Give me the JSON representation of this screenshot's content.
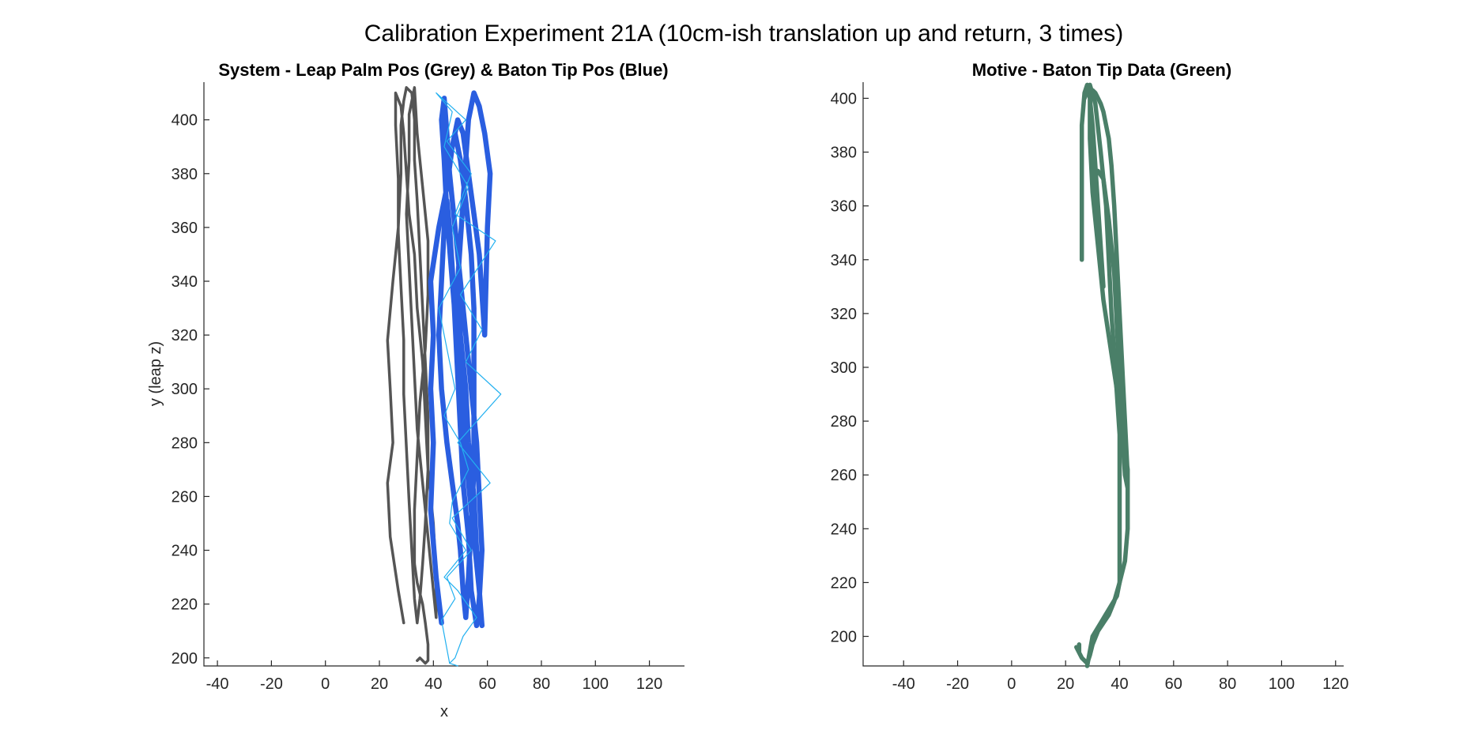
{
  "figure_title": "Calibration Experiment 21A (10cm-ish translation up and return, 3 times)",
  "colors": {
    "grey": "#555555",
    "blue": "#2a5ee0",
    "cyan": "#22b0f0",
    "green": "#4a7f68",
    "axis": "#262626"
  },
  "chart_data": [
    {
      "type": "line",
      "title": "System - Leap Palm Pos (Grey) & Baton Tip Pos (Blue)",
      "xlabel": "x",
      "ylabel": "y (leap z)",
      "xlim": [
        -45,
        133
      ],
      "ylim": [
        197,
        414
      ],
      "xticks": [
        -40,
        -20,
        0,
        20,
        40,
        60,
        80,
        100,
        120
      ],
      "yticks": [
        200,
        220,
        240,
        260,
        280,
        300,
        320,
        340,
        360,
        380,
        400
      ],
      "grid": false,
      "series": [
        {
          "color": "#555555",
          "width": 3.5,
          "x": [
            29,
            27,
            24,
            23,
            25,
            24,
            23,
            25,
            27,
            28,
            28,
            29,
            30,
            32,
            33,
            33,
            34,
            35,
            36,
            37,
            38,
            38,
            37,
            36,
            35,
            34,
            33,
            32,
            31,
            30,
            29,
            29,
            28,
            27,
            27,
            26,
            26,
            28,
            29,
            30,
            31,
            33,
            34,
            36,
            37,
            38,
            40,
            41,
            41,
            40,
            38,
            36,
            34,
            33,
            32,
            31,
            30,
            31,
            31,
            33,
            34,
            36,
            38,
            38,
            37,
            35,
            34,
            33,
            33
          ],
          "y": [
            213,
            225,
            245,
            265,
            280,
            300,
            318,
            340,
            360,
            380,
            398,
            407,
            412,
            410,
            400,
            385,
            370,
            350,
            330,
            310,
            290,
            270,
            250,
            235,
            222,
            213,
            222,
            240,
            258,
            278,
            298,
            318,
            338,
            358,
            378,
            398,
            410,
            405,
            395,
            380,
            365,
            350,
            330,
            310,
            290,
            270,
            250,
            230,
            215,
            225,
            245,
            265,
            285,
            305,
            325,
            345,
            365,
            385,
            402,
            412,
            395,
            375,
            355,
            335,
            315,
            295,
            275,
            255,
            235
          ]
        },
        {
          "color": "#555555",
          "width": 3.5,
          "x": [
            33,
            34,
            36,
            37,
            38,
            38,
            37,
            36,
            35,
            34
          ],
          "y": [
            235,
            228,
            220,
            213,
            205,
            199,
            198,
            199,
            200,
            199
          ]
        },
        {
          "color": "#2a5ee0",
          "width": 6.5,
          "x": [
            43,
            41,
            39,
            40,
            39,
            40,
            39,
            42,
            45,
            47,
            49,
            51,
            53,
            55,
            57,
            58,
            59,
            60,
            61,
            59,
            57,
            55,
            53,
            52,
            51,
            50,
            49,
            50,
            52,
            53,
            55,
            56,
            57,
            58,
            57,
            55,
            53,
            51,
            49,
            47,
            45,
            44,
            43,
            44,
            45,
            46,
            48,
            50,
            52,
            54,
            56,
            57,
            58,
            57,
            56,
            54,
            53,
            51,
            50,
            49,
            48,
            47,
            46,
            45,
            44,
            43,
            42,
            43,
            45,
            47,
            49,
            50,
            51,
            52,
            53,
            54,
            55,
            55,
            55,
            55,
            54,
            52,
            50,
            48
          ],
          "y": [
            213,
            230,
            255,
            280,
            300,
            320,
            340,
            360,
            375,
            390,
            400,
            395,
            380,
            365,
            350,
            335,
            320,
            360,
            380,
            395,
            405,
            410,
            400,
            385,
            370,
            355,
            340,
            320,
            300,
            280,
            260,
            240,
            225,
            212,
            225,
            245,
            265,
            290,
            315,
            340,
            365,
            385,
            400,
            408,
            395,
            380,
            360,
            340,
            320,
            300,
            280,
            260,
            240,
            222,
            212,
            225,
            245,
            265,
            285,
            305,
            325,
            345,
            360,
            370,
            360,
            340,
            320,
            300,
            280,
            265,
            250,
            240,
            225,
            215,
            230,
            250,
            270,
            290,
            310,
            330,
            350,
            370,
            385,
            395
          ]
        },
        {
          "color": "#22b0f0",
          "width": 1.2,
          "x": [
            46,
            43,
            48,
            45,
            54,
            47,
            61,
            49,
            65,
            52,
            58,
            50,
            63,
            48,
            54,
            45,
            52,
            41,
            47,
            44,
            53,
            47,
            50,
            42,
            46,
            48,
            44,
            50,
            53,
            47,
            46,
            52,
            44,
            49,
            56,
            51,
            48,
            46,
            49
          ],
          "y": [
            198,
            214,
            222,
            230,
            240,
            252,
            265,
            280,
            298,
            310,
            322,
            335,
            355,
            365,
            380,
            392,
            400,
            410,
            403,
            390,
            375,
            360,
            345,
            330,
            310,
            300,
            290,
            280,
            270,
            258,
            250,
            240,
            230,
            225,
            215,
            208,
            200,
            198,
            197
          ]
        }
      ]
    },
    {
      "type": "line",
      "title": "Motive - Baton Tip Data (Green)",
      "xlabel": "",
      "ylabel": "",
      "xlim": [
        -55,
        123
      ],
      "ylim": [
        189,
        406
      ],
      "xticks": [
        -40,
        -20,
        0,
        20,
        40,
        60,
        80,
        100,
        120
      ],
      "yticks": [
        200,
        220,
        240,
        260,
        280,
        300,
        320,
        340,
        360,
        380,
        400
      ],
      "grid": false,
      "series": [
        {
          "color": "#4a7f68",
          "width": 5.5,
          "x": [
            25,
            25,
            24,
            26,
            28,
            29,
            30,
            32,
            34,
            36,
            38,
            40,
            42,
            43,
            43,
            42,
            41,
            40,
            39,
            38,
            37,
            36,
            35,
            34,
            33,
            32,
            31,
            30,
            29,
            29,
            30,
            32,
            34,
            37,
            40,
            42,
            43,
            43,
            42,
            41,
            40,
            39,
            38,
            36,
            34,
            32,
            31,
            31,
            32,
            33,
            34,
            33,
            32,
            31,
            30,
            29,
            28,
            27,
            26,
            26,
            26
          ],
          "y": [
            197,
            194,
            196,
            192,
            190,
            193,
            197,
            202,
            205,
            208,
            213,
            220,
            228,
            240,
            260,
            280,
            300,
            320,
            340,
            360,
            375,
            385,
            390,
            395,
            398,
            400,
            402,
            403,
            400,
            385,
            365,
            345,
            325,
            305,
            285,
            270,
            262,
            255,
            260,
            275,
            295,
            315,
            335,
            355,
            370,
            373,
            372,
            365,
            352,
            340,
            330,
            345,
            360,
            375,
            390,
            400,
            405,
            402,
            390,
            370,
            340
          ]
        },
        {
          "color": "#4a7f68",
          "width": 5.5,
          "x": [
            28,
            30,
            33,
            36,
            39,
            40,
            40,
            40,
            40,
            39,
            38,
            37,
            36,
            35,
            33,
            31,
            29,
            27
          ],
          "y": [
            189,
            200,
            205,
            210,
            215,
            220,
            235,
            255,
            275,
            290,
            305,
            320,
            340,
            360,
            380,
            398,
            405,
            400
          ]
        }
      ]
    }
  ]
}
